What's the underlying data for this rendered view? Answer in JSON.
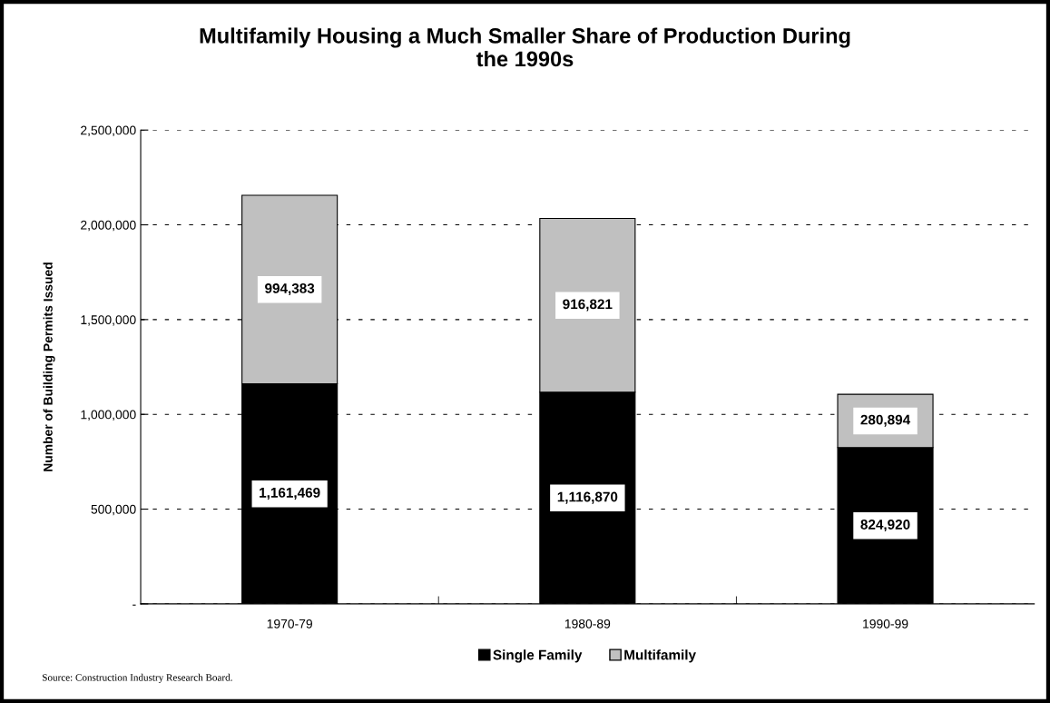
{
  "chart_data": {
    "type": "bar",
    "title": "Multifamily Housing a Much Smaller Share of Production During\nthe 1990s",
    "ylabel": "Number of Building Permits Issued",
    "categories": [
      "1970-79",
      "1980-89",
      "1990-99"
    ],
    "stacked": true,
    "series": [
      {
        "name": "Single Family",
        "color": "#000000",
        "values": [
          1161469,
          1116870,
          824920
        ],
        "value_labels": [
          "1,161,469",
          "1,116,870",
          "824,920"
        ]
      },
      {
        "name": "Multifamily",
        "color": "#c0c0c0",
        "values": [
          994383,
          916821,
          280894
        ],
        "value_labels": [
          "994,383",
          "916,821",
          "280,894"
        ]
      }
    ],
    "ylim": [
      0,
      2500000
    ],
    "yticks": [
      {
        "value": 0,
        "label": "-"
      },
      {
        "value": 500000,
        "label": "500,000"
      },
      {
        "value": 1000000,
        "label": "1,000,000"
      },
      {
        "value": 1500000,
        "label": "1,500,000"
      },
      {
        "value": 2000000,
        "label": "2,000,000"
      },
      {
        "value": 2500000,
        "label": "2,500,000"
      }
    ],
    "grid": "y",
    "legend": "bottom",
    "annotations": [
      "Source: Construction Industry Research Board."
    ]
  }
}
